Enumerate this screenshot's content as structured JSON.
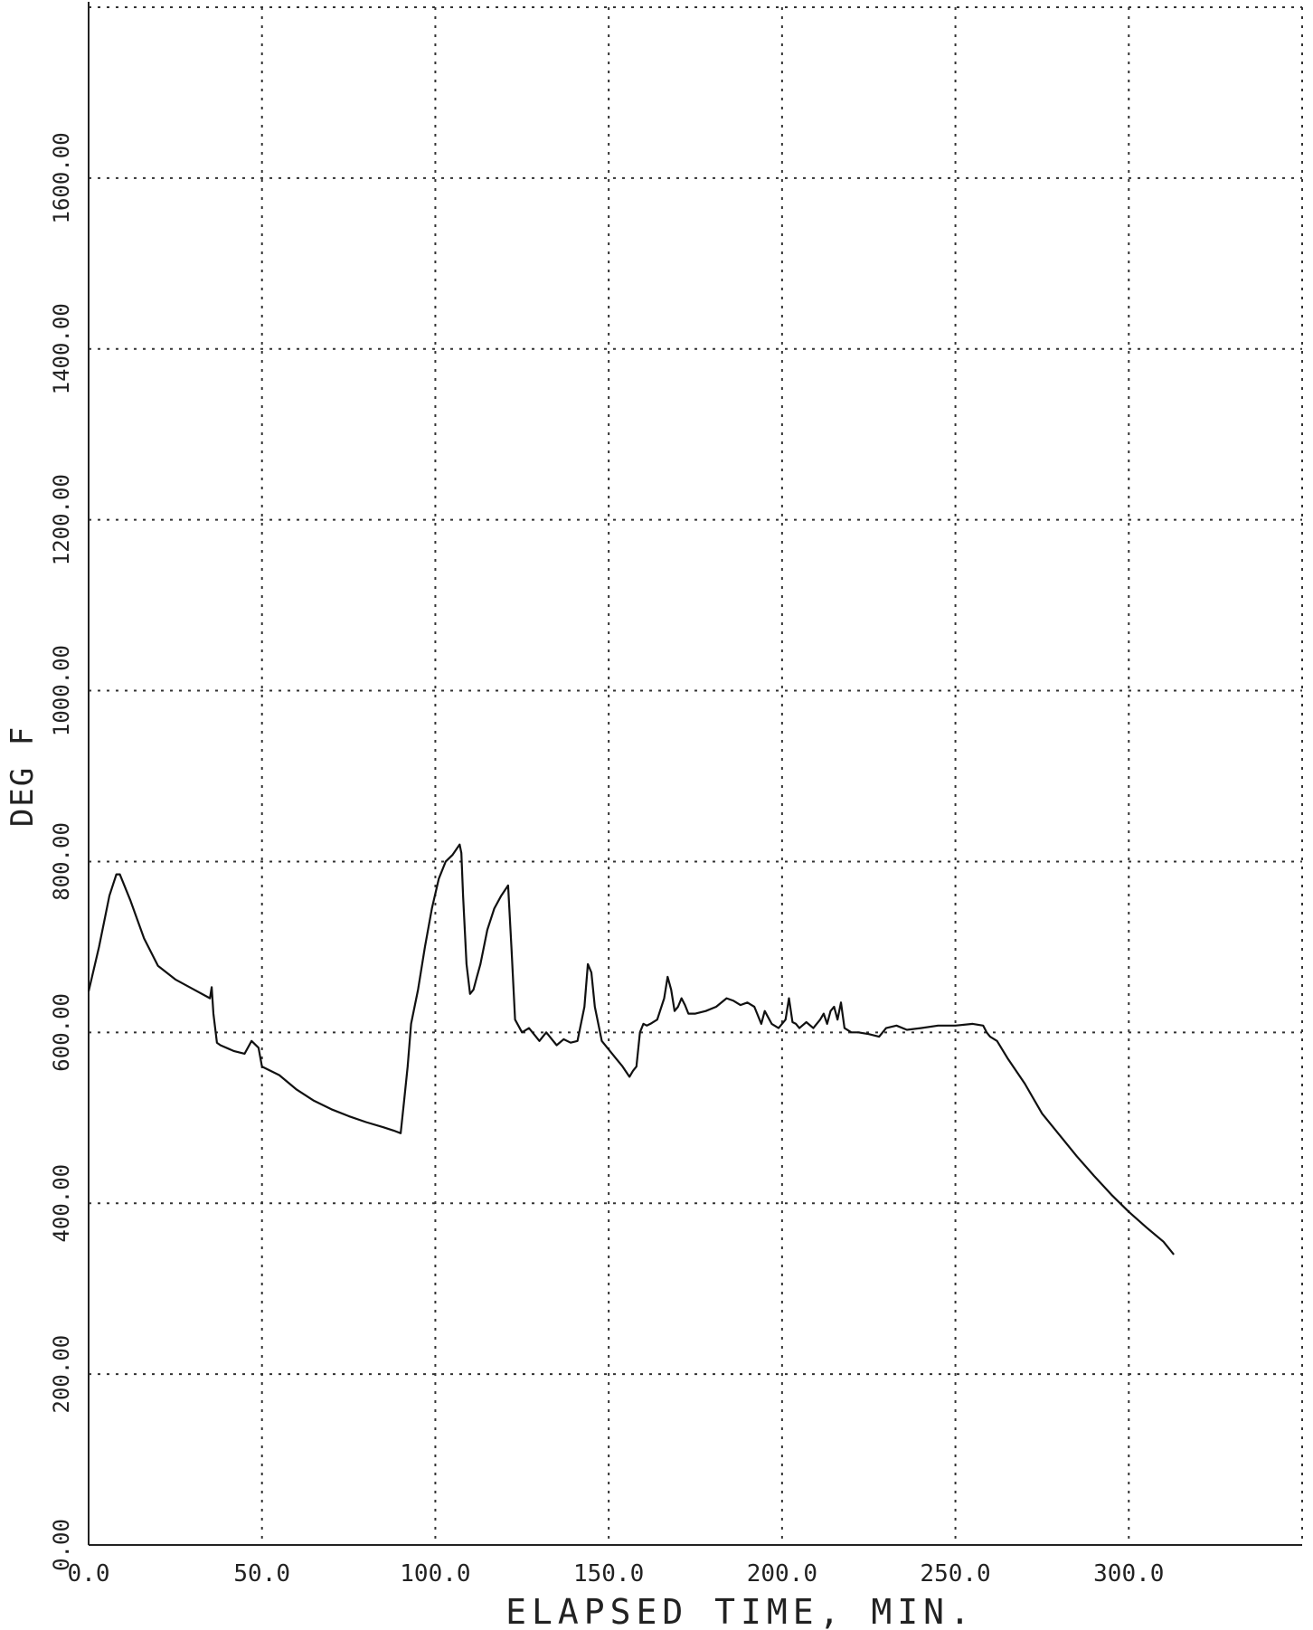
{
  "chart_data": {
    "type": "line",
    "title": "",
    "xlabel": "ELAPSED TIME, MIN.",
    "ylabel": "DEG F",
    "xlim": [
      0,
      350
    ],
    "ylim": [
      0,
      1800
    ],
    "x_ticks": [
      0,
      50,
      100,
      150,
      200,
      250,
      300
    ],
    "x_tick_labels": [
      "0.0",
      "50.0",
      "100.0",
      "150.0",
      "200.0",
      "250.0",
      "300.0"
    ],
    "y_ticks": [
      0,
      200,
      400,
      600,
      800,
      1000,
      1200,
      1400,
      1600
    ],
    "y_tick_labels": [
      "0.00",
      "200.00",
      "400.00",
      "600.00",
      "800.00",
      "1000.00",
      "1200.00",
      "1400.00",
      "1600.00"
    ],
    "grid": true,
    "series": [
      {
        "name": "",
        "x": [
          0,
          3,
          6,
          8,
          9,
          12,
          16,
          20,
          25,
          30,
          35,
          35.5,
          36,
          37,
          38,
          42,
          45,
          47,
          49,
          50,
          55,
          60,
          65,
          70,
          75,
          80,
          85,
          88,
          90,
          91,
          92,
          93,
          95,
          97,
          99,
          101,
          103,
          105,
          107,
          107.5,
          108,
          109,
          110,
          111,
          112,
          113,
          115,
          117,
          119,
          121,
          122,
          123,
          125,
          127,
          130,
          132,
          135,
          137,
          139,
          141,
          143,
          144,
          145,
          146,
          148,
          150,
          152,
          154,
          156,
          157,
          158,
          159,
          160,
          161,
          162,
          164,
          166,
          167,
          168,
          169,
          170,
          171,
          172,
          173,
          175,
          178,
          181,
          184,
          186,
          188,
          190,
          192,
          194,
          195,
          197,
          199,
          201,
          202,
          203,
          204,
          205,
          207,
          209,
          211,
          212,
          213,
          214,
          215,
          216,
          217,
          218,
          220,
          222,
          225,
          228,
          230,
          233,
          236,
          240,
          245,
          250,
          255,
          258,
          259,
          260,
          262,
          265,
          270,
          275,
          280,
          285,
          290,
          295,
          300,
          305,
          310,
          313
        ],
        "y": [
          648,
          700,
          760,
          785,
          785,
          755,
          710,
          678,
          662,
          651,
          640,
          653,
          622,
          588,
          585,
          578,
          575,
          590,
          582,
          560,
          550,
          533,
          520,
          510,
          502,
          495,
          489,
          485,
          482,
          520,
          560,
          610,
          650,
          700,
          745,
          780,
          800,
          808,
          820,
          810,
          760,
          680,
          645,
          650,
          665,
          680,
          720,
          745,
          760,
          772,
          695,
          615,
          600,
          605,
          590,
          600,
          585,
          592,
          588,
          590,
          630,
          680,
          670,
          630,
          590,
          580,
          570,
          560,
          548,
          555,
          560,
          600,
          610,
          608,
          610,
          615,
          640,
          665,
          650,
          625,
          630,
          640,
          632,
          622,
          622,
          625,
          630,
          640,
          637,
          632,
          635,
          630,
          610,
          625,
          610,
          605,
          615,
          640,
          612,
          610,
          605,
          612,
          605,
          615,
          622,
          610,
          625,
          630,
          615,
          635,
          605,
          600,
          600,
          598,
          595,
          605,
          608,
          603,
          605,
          608,
          608,
          610,
          608,
          600,
          595,
          590,
          570,
          540,
          505,
          480,
          455,
          432,
          410,
          390,
          372,
          355,
          340
        ]
      }
    ]
  }
}
